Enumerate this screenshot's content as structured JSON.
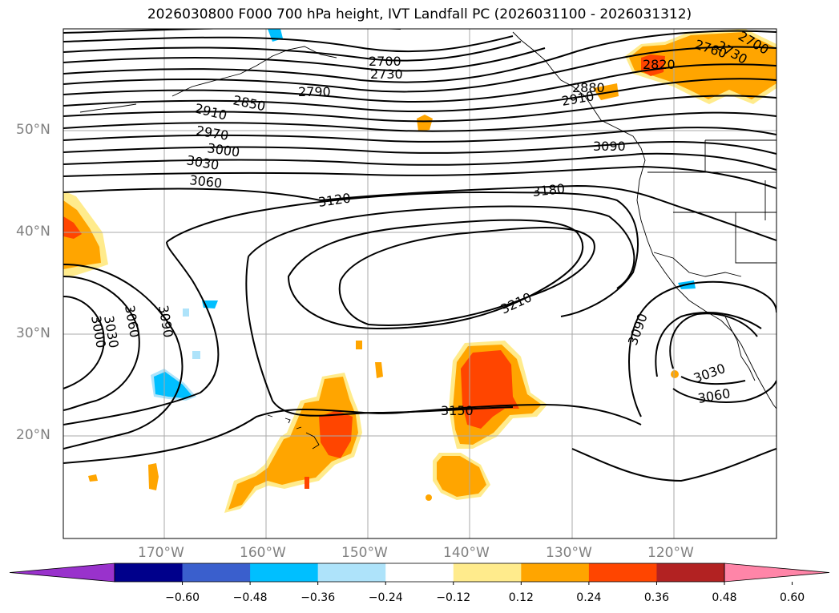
{
  "title": "2026030800 F000 700 hPa height, IVT Landfall PC (2026031100 - 2026031312)",
  "lat_labels": [
    "50°N",
    "40°N",
    "30°N",
    "20°N"
  ],
  "lon_labels": [
    "170°W",
    "160°W",
    "150°W",
    "140°W",
    "130°W",
    "120°W"
  ],
  "contour_labels": [
    "2700",
    "2730",
    "2790",
    "2850",
    "2910",
    "2970",
    "3000",
    "3030",
    "3060",
    "3120",
    "3180",
    "3210",
    "3150",
    "3090",
    "3090",
    "3060",
    "3030",
    "3000",
    "3090",
    "3030",
    "3060",
    "2820",
    "2760",
    "2730",
    "2700",
    "2880",
    "2910"
  ],
  "colorbar": {
    "ticks": [
      "−0.60",
      "−0.48",
      "−0.36",
      "−0.24",
      "−0.12",
      "0.12",
      "0.24",
      "0.36",
      "0.48",
      "0.60"
    ],
    "colors": [
      "#9932CC",
      "#00008B",
      "#3A5FCD",
      "#00BFFF",
      "#AEE3FA",
      "#FFFFFF",
      "#FFEB8C",
      "#FFA500",
      "#FF4500",
      "#B22222",
      "#FF85A8"
    ]
  }
}
